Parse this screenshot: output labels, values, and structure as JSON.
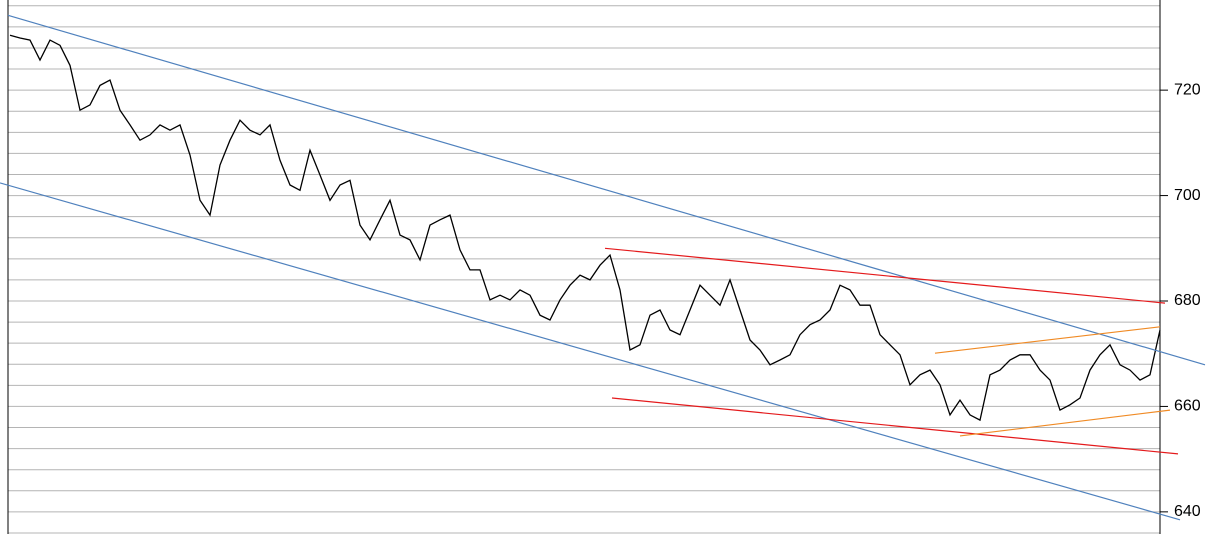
{
  "chart_data": {
    "type": "line",
    "values": [
      730.4,
      729.9,
      729.5,
      725.7,
      729.5,
      728.5,
      724.7,
      716.2,
      717.2,
      720.9,
      721.9,
      716.2,
      713.4,
      710.5,
      711.5,
      713.4,
      712.4,
      713.4,
      707.7,
      699.1,
      696.3,
      705.8,
      710.5,
      714.3,
      712.4,
      711.5,
      713.4,
      706.7,
      702.0,
      701.0,
      708.6,
      703.9,
      699.1,
      702.0,
      702.9,
      694.4,
      691.6,
      695.4,
      699.1,
      692.5,
      691.6,
      687.8,
      694.4,
      695.4,
      696.3,
      689.7,
      685.9,
      685.9,
      680.2,
      681.1,
      680.2,
      682.1,
      681.1,
      677.3,
      676.4,
      680.2,
      683.0,
      684.9,
      684.0,
      686.8,
      688.7,
      682.1,
      670.7,
      671.7,
      677.3,
      678.3,
      674.5,
      673.6,
      678.3,
      683.0,
      681.1,
      679.2,
      684.0,
      678.3,
      672.6,
      670.7,
      667.9,
      668.8,
      669.8,
      673.6,
      675.5,
      676.4,
      678.3,
      683.0,
      682.1,
      679.2,
      679.2,
      673.6,
      671.7,
      669.8,
      664.1,
      666.0,
      666.9,
      664.1,
      658.4,
      661.2,
      658.4,
      657.4,
      666.0,
      666.9,
      668.8,
      669.8,
      669.8,
      666.9,
      665.0,
      659.3,
      660.3,
      661.6,
      666.9,
      669.8,
      671.7,
      667.9,
      666.9,
      665.0,
      666.0,
      674.5
    ],
    "color": "#000000",
    "xlim": [
      -0.2,
      115
    ],
    "ylim": [
      635.8,
      737.1
    ],
    "yticks": [
      640,
      660,
      680,
      700,
      720
    ],
    "ygrid": [
      636,
      640,
      644,
      648,
      652,
      656,
      660,
      664,
      668,
      672,
      676,
      680,
      684,
      688,
      692,
      696,
      700,
      704,
      708,
      712,
      716,
      720,
      724,
      728,
      732,
      736
    ],
    "trendlines": [
      {
        "color": "#4f81bd",
        "points": [
          [
            -0.2,
            734.2
          ],
          [
            119.5,
            667.9
          ]
        ]
      },
      {
        "color": "#4f81bd",
        "points": [
          [
            -1.0,
            702.4
          ],
          [
            117.0,
            638.5
          ]
        ]
      },
      {
        "color": "#e41a1c",
        "points": [
          [
            59.5,
            690.0
          ],
          [
            115.5,
            679.6
          ]
        ]
      },
      {
        "color": "#e41a1c",
        "points": [
          [
            60.2,
            661.6
          ],
          [
            116.8,
            651.0
          ]
        ]
      },
      {
        "color": "#f08a24",
        "points": [
          [
            92.5,
            670.1
          ],
          [
            115.0,
            675.1
          ]
        ]
      },
      {
        "color": "#f08a24",
        "points": [
          [
            95.0,
            654.4
          ],
          [
            116.0,
            659.3
          ]
        ]
      }
    ]
  }
}
